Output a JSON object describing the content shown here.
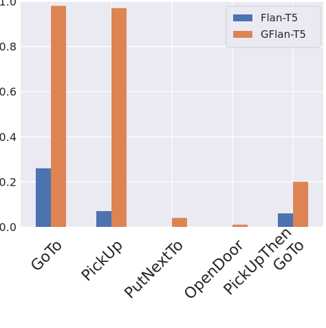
{
  "chart_data": {
    "type": "bar",
    "categories": [
      "GoTo",
      "PickUp",
      "PutNextTo",
      "OpenDoor",
      "PickUpThen\nGoTo"
    ],
    "series": [
      {
        "name": "Flan-T5",
        "values": [
          0.26,
          0.07,
          0.0,
          0.0,
          0.06
        ],
        "color": "#4c72b0"
      },
      {
        "name": "GFlan-T5",
        "values": [
          0.98,
          0.97,
          0.04,
          0.01,
          0.2
        ],
        "color": "#dd8452"
      }
    ],
    "ylim": [
      0,
      1.0
    ],
    "yticks": [
      0.0,
      0.2,
      0.4,
      0.6,
      0.8,
      1.0
    ],
    "ytick_labels": [
      "0.0",
      "0.2",
      "0.4",
      "0.6",
      "0.8",
      "1.0"
    ],
    "title": "",
    "xlabel": "",
    "ylabel": "",
    "grid": true,
    "background": "#eaeaf2",
    "grid_color": "#ffffff",
    "legend_position": "top-right"
  }
}
